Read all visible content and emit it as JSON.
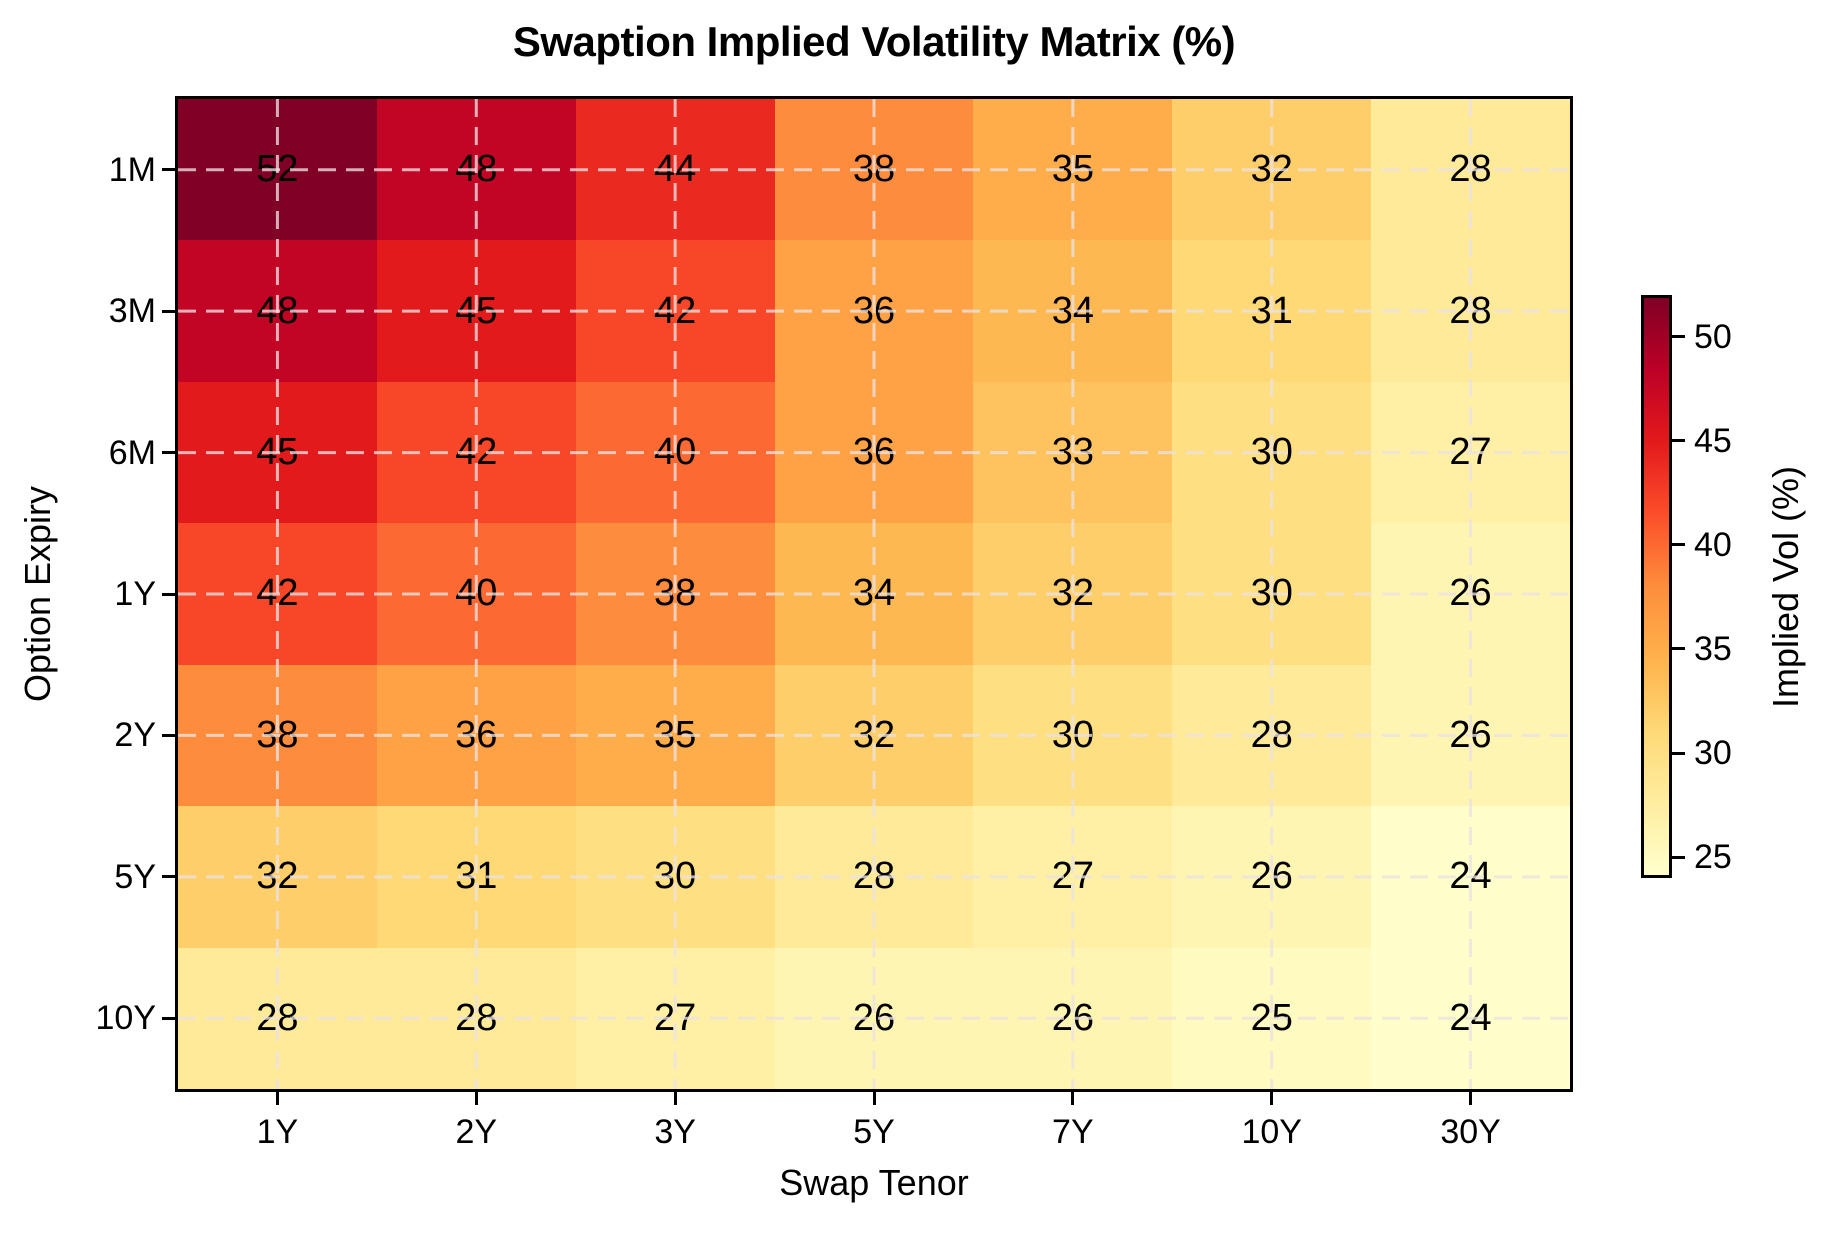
{
  "title": "Swaption Implied Volatility Matrix (%)",
  "axes": {
    "xlabel": "Swap Tenor",
    "ylabel": "Option Expiry"
  },
  "colorbar": {
    "label": "Implied Vol (%)",
    "ticks": [
      25,
      30,
      35,
      40,
      45,
      50
    ]
  },
  "chart_data": {
    "type": "heatmap",
    "title": "Swaption Implied Volatility Matrix (%)",
    "xlabel": "Swap Tenor",
    "ylabel": "Option Expiry",
    "x_categories": [
      "1Y",
      "2Y",
      "3Y",
      "5Y",
      "7Y",
      "10Y",
      "30Y"
    ],
    "y_categories": [
      "1M",
      "3M",
      "6M",
      "1Y",
      "2Y",
      "5Y",
      "10Y"
    ],
    "values": [
      [
        52,
        48,
        44,
        38,
        35,
        32,
        28
      ],
      [
        48,
        45,
        42,
        36,
        34,
        31,
        28
      ],
      [
        45,
        42,
        40,
        36,
        33,
        30,
        27
      ],
      [
        42,
        40,
        38,
        34,
        32,
        30,
        26
      ],
      [
        38,
        36,
        35,
        32,
        30,
        28,
        26
      ],
      [
        32,
        31,
        30,
        28,
        27,
        26,
        24
      ],
      [
        28,
        28,
        27,
        26,
        26,
        25,
        24
      ]
    ],
    "vmin": 24,
    "vmax": 52,
    "colormap": "YlOrRd",
    "colormap_stops": [
      {
        "t": 0.0,
        "color": "#ffffcc"
      },
      {
        "t": 0.125,
        "color": "#ffeda0"
      },
      {
        "t": 0.25,
        "color": "#fed976"
      },
      {
        "t": 0.375,
        "color": "#feb24c"
      },
      {
        "t": 0.5,
        "color": "#fd8d3c"
      },
      {
        "t": 0.625,
        "color": "#fc4e2a"
      },
      {
        "t": 0.75,
        "color": "#e31a1c"
      },
      {
        "t": 0.875,
        "color": "#bd0026"
      },
      {
        "t": 1.0,
        "color": "#800026"
      }
    ],
    "colorbar_label": "Implied Vol (%)",
    "colorbar_ticks": [
      25,
      30,
      35,
      40,
      45,
      50
    ],
    "grid": true,
    "grid_style": "dashed",
    "annotated": true,
    "legend_position": "right-colorbar"
  }
}
